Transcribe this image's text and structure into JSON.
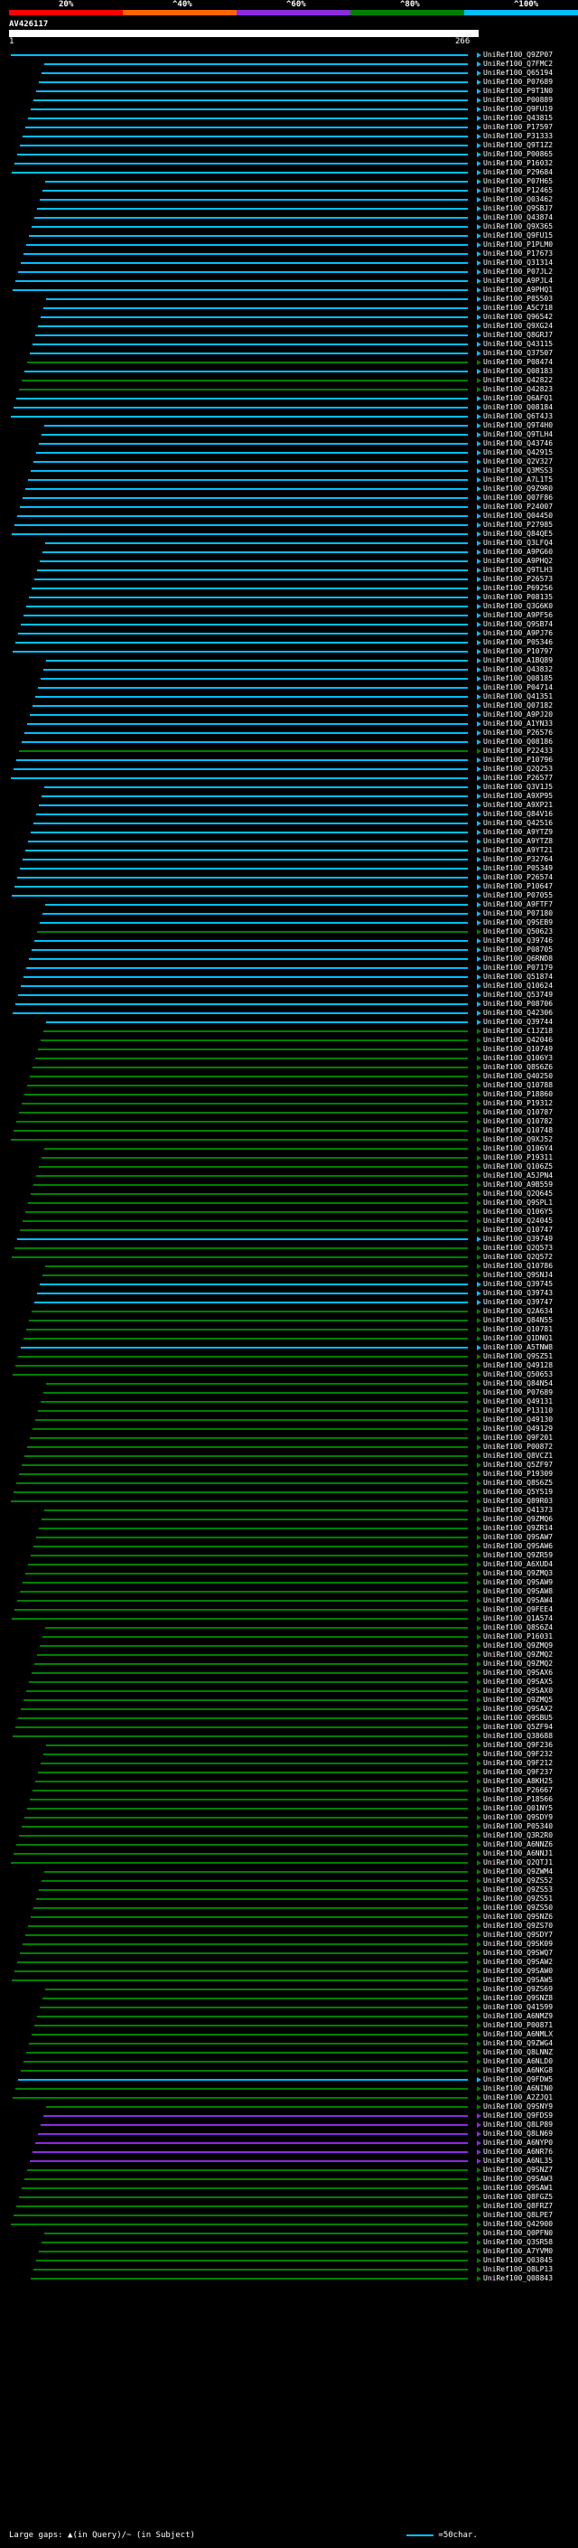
{
  "scale": {
    "labels": [
      "20%",
      "^40%",
      "^60%",
      "^80%",
      "^100%"
    ],
    "colors": [
      "#ff0000",
      "#ff6600",
      "#8a2be2",
      "#008000",
      "#00bfff"
    ]
  },
  "query": {
    "id": "AV426117",
    "start": "1",
    "end": "266"
  },
  "hits": [
    {
      "id": "UniRef100_Q9ZP07",
      "color": "#00bfff"
    },
    {
      "id": "UniRef100_Q7FMC2",
      "color": "#00bfff"
    },
    {
      "id": "UniRef100_Q65194",
      "color": "#00bfff"
    },
    {
      "id": "UniRef100_P07689",
      "color": "#00bfff"
    },
    {
      "id": "UniRef100_P9T1N0",
      "color": "#00bfff"
    },
    {
      "id": "UniRef100_P00889",
      "color": "#00bfff"
    },
    {
      "id": "UniRef100_Q9FU19",
      "color": "#00bfff"
    },
    {
      "id": "UniRef100_Q43815",
      "color": "#00bfff"
    },
    {
      "id": "UniRef100_P17597",
      "color": "#00bfff"
    },
    {
      "id": "UniRef100_P31333",
      "color": "#00bfff"
    },
    {
      "id": "UniRef100_Q9T1Z2",
      "color": "#00bfff"
    },
    {
      "id": "UniRef100_P00865",
      "color": "#00bfff"
    },
    {
      "id": "UniRef100_P16032",
      "color": "#00bfff"
    },
    {
      "id": "UniRef100_P29684",
      "color": "#00bfff"
    },
    {
      "id": "UniRef100_P07H65",
      "color": "#00bfff"
    },
    {
      "id": "UniRef100_P12465",
      "color": "#00bfff"
    },
    {
      "id": "UniRef100_Q03462",
      "color": "#00bfff"
    },
    {
      "id": "UniRef100_Q9SBJ7",
      "color": "#00bfff"
    },
    {
      "id": "UniRef100_Q43874",
      "color": "#00bfff"
    },
    {
      "id": "UniRef100_Q9X365",
      "color": "#00bfff"
    },
    {
      "id": "UniRef100_Q9FU15",
      "color": "#00bfff"
    },
    {
      "id": "UniRef100_P1PLM0",
      "color": "#00bfff"
    },
    {
      "id": "UniRef100_P17673",
      "color": "#00bfff"
    },
    {
      "id": "UniRef100_Q31314",
      "color": "#00bfff"
    },
    {
      "id": "UniRef100_P07JL2",
      "color": "#00bfff"
    },
    {
      "id": "UniRef100_A9PJL4",
      "color": "#00bfff"
    },
    {
      "id": "UniRef100_A9PHQ1",
      "color": "#00bfff"
    },
    {
      "id": "UniRef100_P85503",
      "color": "#00bfff"
    },
    {
      "id": "UniRef100_A5C718",
      "color": "#00bfff"
    },
    {
      "id": "UniRef100_Q96542",
      "color": "#00bfff"
    },
    {
      "id": "UniRef100_Q9XG24",
      "color": "#00bfff"
    },
    {
      "id": "UniRef100_Q8GRJ7",
      "color": "#00bfff"
    },
    {
      "id": "UniRef100_Q43115",
      "color": "#00bfff"
    },
    {
      "id": "UniRef100_Q37507",
      "color": "#00bfff"
    },
    {
      "id": "UniRef100_P08474",
      "color": "#008000"
    },
    {
      "id": "UniRef100_Q08183",
      "color": "#00bfff"
    },
    {
      "id": "UniRef100_Q42822",
      "color": "#008000"
    },
    {
      "id": "UniRef100_Q42823",
      "color": "#008000"
    },
    {
      "id": "UniRef100_Q6AFQ1",
      "color": "#00bfff"
    },
    {
      "id": "UniRef100_Q08184",
      "color": "#00bfff"
    },
    {
      "id": "UniRef100_Q6T4J3",
      "color": "#00bfff"
    },
    {
      "id": "UniRef100_Q9T4H0",
      "color": "#00bfff"
    },
    {
      "id": "UniRef100_Q9TLH4",
      "color": "#00bfff"
    },
    {
      "id": "UniRef100_Q43746",
      "color": "#00bfff"
    },
    {
      "id": "UniRef100_Q42915",
      "color": "#00bfff"
    },
    {
      "id": "UniRef100_Q2V327",
      "color": "#00bfff"
    },
    {
      "id": "UniRef100_Q3MSS3",
      "color": "#00bfff"
    },
    {
      "id": "UniRef100_A7L1T5",
      "color": "#00bfff"
    },
    {
      "id": "UniRef100_Q9Z9R0",
      "color": "#00bfff"
    },
    {
      "id": "UniRef100_Q07F86",
      "color": "#00bfff"
    },
    {
      "id": "UniRef100_P24007",
      "color": "#00bfff"
    },
    {
      "id": "UniRef100_Q04450",
      "color": "#00bfff"
    },
    {
      "id": "UniRef100_P27985",
      "color": "#00bfff"
    },
    {
      "id": "UniRef100_Q84QE5",
      "color": "#00bfff"
    },
    {
      "id": "UniRef100_Q3LFQ4",
      "color": "#00bfff"
    },
    {
      "id": "UniRef100_A9PG60",
      "color": "#00bfff"
    },
    {
      "id": "UniRef100_A9PHQ2",
      "color": "#00bfff"
    },
    {
      "id": "UniRef100_Q9TLH3",
      "color": "#00bfff"
    },
    {
      "id": "UniRef100_P26573",
      "color": "#00bfff"
    },
    {
      "id": "UniRef100_P69256",
      "color": "#00bfff"
    },
    {
      "id": "UniRef100_P08135",
      "color": "#00bfff"
    },
    {
      "id": "UniRef100_Q3G6K0",
      "color": "#00bfff"
    },
    {
      "id": "UniRef100_A9PF56",
      "color": "#00bfff"
    },
    {
      "id": "UniRef100_Q9SB74",
      "color": "#00bfff"
    },
    {
      "id": "UniRef100_A9PJ76",
      "color": "#00bfff"
    },
    {
      "id": "UniRef100_P05346",
      "color": "#00bfff"
    },
    {
      "id": "UniRef100_P10797",
      "color": "#00bfff"
    },
    {
      "id": "UniRef100_A1BQ89",
      "color": "#00bfff"
    },
    {
      "id": "UniRef100_Q43832",
      "color": "#00bfff"
    },
    {
      "id": "UniRef100_Q08185",
      "color": "#00bfff"
    },
    {
      "id": "UniRef100_P04714",
      "color": "#00bfff"
    },
    {
      "id": "UniRef100_Q41351",
      "color": "#00bfff"
    },
    {
      "id": "UniRef100_Q07182",
      "color": "#00bfff"
    },
    {
      "id": "UniRef100_A9PJ20",
      "color": "#00bfff"
    },
    {
      "id": "UniRef100_A1YN33",
      "color": "#00bfff"
    },
    {
      "id": "UniRef100_P26576",
      "color": "#00bfff"
    },
    {
      "id": "UniRef100_Q08186",
      "color": "#00bfff"
    },
    {
      "id": "UniRef100_P22433",
      "color": "#008000"
    },
    {
      "id": "UniRef100_P10796",
      "color": "#00bfff"
    },
    {
      "id": "UniRef100_Q2Q253",
      "color": "#00bfff"
    },
    {
      "id": "UniRef100_P26577",
      "color": "#00bfff"
    },
    {
      "id": "UniRef100_Q3V1J5",
      "color": "#00bfff"
    },
    {
      "id": "UniRef100_A9XP95",
      "color": "#00bfff"
    },
    {
      "id": "UniRef100_A9XP21",
      "color": "#00bfff"
    },
    {
      "id": "UniRef100_Q84V16",
      "color": "#00bfff"
    },
    {
      "id": "UniRef100_Q42516",
      "color": "#00bfff"
    },
    {
      "id": "UniRef100_A9YTZ9",
      "color": "#00bfff"
    },
    {
      "id": "UniRef100_A9YTZ8",
      "color": "#00bfff"
    },
    {
      "id": "UniRef100_A9YT21",
      "color": "#00bfff"
    },
    {
      "id": "UniRef100_P32764",
      "color": "#00bfff"
    },
    {
      "id": "UniRef100_P05349",
      "color": "#00bfff"
    },
    {
      "id": "UniRef100_P26574",
      "color": "#00bfff"
    },
    {
      "id": "UniRef100_P10647",
      "color": "#00bfff"
    },
    {
      "id": "UniRef100_P07055",
      "color": "#00bfff"
    },
    {
      "id": "UniRef100_A9FTF7",
      "color": "#00bfff"
    },
    {
      "id": "UniRef100_P07180",
      "color": "#00bfff"
    },
    {
      "id": "UniRef100_Q9SEB9",
      "color": "#00bfff"
    },
    {
      "id": "UniRef100_Q50623",
      "color": "#008000"
    },
    {
      "id": "UniRef100_Q39746",
      "color": "#00bfff"
    },
    {
      "id": "UniRef100_P08705",
      "color": "#00bfff"
    },
    {
      "id": "UniRef100_Q6RND8",
      "color": "#00bfff"
    },
    {
      "id": "UniRef100_P07179",
      "color": "#00bfff"
    },
    {
      "id": "UniRef100_Q51874",
      "color": "#00bfff"
    },
    {
      "id": "UniRef100_Q10624",
      "color": "#00bfff"
    },
    {
      "id": "UniRef100_Q53749",
      "color": "#00bfff"
    },
    {
      "id": "UniRef100_P08706",
      "color": "#00bfff"
    },
    {
      "id": "UniRef100_Q42306",
      "color": "#00bfff"
    },
    {
      "id": "UniRef100_Q39744",
      "color": "#00bfff"
    },
    {
      "id": "UniRef100_C1JZ18",
      "color": "#008000"
    },
    {
      "id": "UniRef100_Q42046",
      "color": "#008000"
    },
    {
      "id": "UniRef100_Q10749",
      "color": "#008000"
    },
    {
      "id": "UniRef100_Q106Y3",
      "color": "#008000"
    },
    {
      "id": "UniRef100_Q8S6Z6",
      "color": "#008000"
    },
    {
      "id": "UniRef100_Q40250",
      "color": "#008000"
    },
    {
      "id": "UniRef100_Q10788",
      "color": "#008000"
    },
    {
      "id": "UniRef100_P18860",
      "color": "#008000"
    },
    {
      "id": "UniRef100_P19312",
      "color": "#008000"
    },
    {
      "id": "UniRef100_Q10787",
      "color": "#008000"
    },
    {
      "id": "UniRef100_Q10782",
      "color": "#008000"
    },
    {
      "id": "UniRef100_Q10748",
      "color": "#008000"
    },
    {
      "id": "UniRef100_Q9XJ52",
      "color": "#008000"
    },
    {
      "id": "UniRef100_Q106Y4",
      "color": "#008000"
    },
    {
      "id": "UniRef100_P19311",
      "color": "#008000"
    },
    {
      "id": "UniRef100_Q106Z5",
      "color": "#008000"
    },
    {
      "id": "UniRef100_A5JPN4",
      "color": "#008000"
    },
    {
      "id": "UniRef100_A9B559",
      "color": "#008000"
    },
    {
      "id": "UniRef100_Q2Q645",
      "color": "#008000"
    },
    {
      "id": "UniRef100_Q9SPL1",
      "color": "#008000"
    },
    {
      "id": "UniRef100_Q106Y5",
      "color": "#008000"
    },
    {
      "id": "UniRef100_Q24045",
      "color": "#008000"
    },
    {
      "id": "UniRef100_Q10747",
      "color": "#008000"
    },
    {
      "id": "UniRef100_Q39749",
      "color": "#00bfff"
    },
    {
      "id": "UniRef100_Q2Q573",
      "color": "#008000"
    },
    {
      "id": "UniRef100_Q2Q572",
      "color": "#008000"
    },
    {
      "id": "UniRef100_Q10786",
      "color": "#008000"
    },
    {
      "id": "UniRef100_Q9SNJ4",
      "color": "#008000"
    },
    {
      "id": "UniRef100_Q39745",
      "color": "#00bfff"
    },
    {
      "id": "UniRef100_Q39743",
      "color": "#00bfff"
    },
    {
      "id": "UniRef100_Q39747",
      "color": "#00bfff"
    },
    {
      "id": "UniRef100_Q2A634",
      "color": "#008000"
    },
    {
      "id": "UniRef100_Q84N55",
      "color": "#008000"
    },
    {
      "id": "UniRef100_Q10781",
      "color": "#008000"
    },
    {
      "id": "UniRef100_Q1DNQ1",
      "color": "#008000"
    },
    {
      "id": "UniRef100_A5TNW8",
      "color": "#00bfff"
    },
    {
      "id": "UniRef100_Q9SZ51",
      "color": "#008000"
    },
    {
      "id": "UniRef100_Q49128",
      "color": "#008000"
    },
    {
      "id": "UniRef100_Q50653",
      "color": "#008000"
    },
    {
      "id": "UniRef100_Q84N54",
      "color": "#008000"
    },
    {
      "id": "UniRef100_P07689",
      "color": "#008000"
    },
    {
      "id": "UniRef100_Q49131",
      "color": "#008000"
    },
    {
      "id": "UniRef100_P13110",
      "color": "#008000"
    },
    {
      "id": "UniRef100_Q49130",
      "color": "#008000"
    },
    {
      "id": "UniRef100_Q49129",
      "color": "#008000"
    },
    {
      "id": "UniRef100_Q9F201",
      "color": "#008000"
    },
    {
      "id": "UniRef100_P00872",
      "color": "#008000"
    },
    {
      "id": "UniRef100_Q8VCZ1",
      "color": "#008000"
    },
    {
      "id": "UniRef100_Q5ZF97",
      "color": "#008000"
    },
    {
      "id": "UniRef100_P19309",
      "color": "#008000"
    },
    {
      "id": "UniRef100_Q8S6Z5",
      "color": "#008000"
    },
    {
      "id": "UniRef100_Q5Y519",
      "color": "#008000"
    },
    {
      "id": "UniRef100_Q89R03",
      "color": "#008000"
    },
    {
      "id": "UniRef100_Q41373",
      "color": "#008000"
    },
    {
      "id": "UniRef100_Q9ZMQ6",
      "color": "#008000"
    },
    {
      "id": "UniRef100_Q9ZR14",
      "color": "#008000"
    },
    {
      "id": "UniRef100_Q9SAW7",
      "color": "#008000"
    },
    {
      "id": "UniRef100_Q9SAW6",
      "color": "#008000"
    },
    {
      "id": "UniRef100_Q9ZR59",
      "color": "#008000"
    },
    {
      "id": "UniRef100_A6XUD4",
      "color": "#008000"
    },
    {
      "id": "UniRef100_Q9ZMQ3",
      "color": "#008000"
    },
    {
      "id": "UniRef100_Q9SAW9",
      "color": "#008000"
    },
    {
      "id": "UniRef100_Q9SAW8",
      "color": "#008000"
    },
    {
      "id": "UniRef100_Q9SAW4",
      "color": "#008000"
    },
    {
      "id": "UniRef100_Q9FEE4",
      "color": "#008000"
    },
    {
      "id": "UniRef100_Q1A574",
      "color": "#008000"
    },
    {
      "id": "UniRef100_Q8S6Z4",
      "color": "#008000"
    },
    {
      "id": "UniRef100_P16031",
      "color": "#008000"
    },
    {
      "id": "UniRef100_Q9ZMQ9",
      "color": "#008000"
    },
    {
      "id": "UniRef100_Q9ZMQ2",
      "color": "#008000"
    },
    {
      "id": "UniRef100_Q9ZMQ2",
      "color": "#008000"
    },
    {
      "id": "UniRef100_Q9SAX6",
      "color": "#008000"
    },
    {
      "id": "UniRef100_Q9SAX5",
      "color": "#008000"
    },
    {
      "id": "UniRef100_Q9SAX0",
      "color": "#008000"
    },
    {
      "id": "UniRef100_Q9ZMQ5",
      "color": "#008000"
    },
    {
      "id": "UniRef100_Q9SAX2",
      "color": "#008000"
    },
    {
      "id": "UniRef100_Q9SBU5",
      "color": "#008000"
    },
    {
      "id": "UniRef100_Q5ZF94",
      "color": "#008000"
    },
    {
      "id": "UniRef100_Q38688",
      "color": "#008000"
    },
    {
      "id": "UniRef100_Q9F236",
      "color": "#008000"
    },
    {
      "id": "UniRef100_Q9F232",
      "color": "#008000"
    },
    {
      "id": "UniRef100_Q9F212",
      "color": "#008000"
    },
    {
      "id": "UniRef100_Q9F237",
      "color": "#008000"
    },
    {
      "id": "UniRef100_A8KH25",
      "color": "#008000"
    },
    {
      "id": "UniRef100_P26667",
      "color": "#008000"
    },
    {
      "id": "UniRef100_P18566",
      "color": "#008000"
    },
    {
      "id": "UniRef100_Q01NY5",
      "color": "#008000"
    },
    {
      "id": "UniRef100_Q9SDY9",
      "color": "#008000"
    },
    {
      "id": "UniRef100_P05340",
      "color": "#008000"
    },
    {
      "id": "UniRef100_Q3R2R0",
      "color": "#008000"
    },
    {
      "id": "UniRef100_A6NNZ6",
      "color": "#008000"
    },
    {
      "id": "UniRef100_A6NNJ1",
      "color": "#008000"
    },
    {
      "id": "UniRef100_Q2QTJ1",
      "color": "#008000"
    },
    {
      "id": "UniRef100_Q9ZWM4",
      "color": "#008000"
    },
    {
      "id": "UniRef100_Q9ZS52",
      "color": "#008000"
    },
    {
      "id": "UniRef100_Q9ZS53",
      "color": "#008000"
    },
    {
      "id": "UniRef100_Q9ZS51",
      "color": "#008000"
    },
    {
      "id": "UniRef100_Q9ZS50",
      "color": "#008000"
    },
    {
      "id": "UniRef100_Q9SNZ6",
      "color": "#008000"
    },
    {
      "id": "UniRef100_Q9ZS70",
      "color": "#008000"
    },
    {
      "id": "UniRef100_Q9SDY7",
      "color": "#008000"
    },
    {
      "id": "UniRef100_Q9SK09",
      "color": "#008000"
    },
    {
      "id": "UniRef100_Q9SWQ7",
      "color": "#008000"
    },
    {
      "id": "UniRef100_Q9SAW2",
      "color": "#008000"
    },
    {
      "id": "UniRef100_Q9SAW0",
      "color": "#008000"
    },
    {
      "id": "UniRef100_Q9SAW5",
      "color": "#008000"
    },
    {
      "id": "UniRef100_Q9ZS69",
      "color": "#008000"
    },
    {
      "id": "UniRef100_Q9SNZ8",
      "color": "#008000"
    },
    {
      "id": "UniRef100_Q41599",
      "color": "#008000"
    },
    {
      "id": "UniRef100_A6NMZ9",
      "color": "#008000"
    },
    {
      "id": "UniRef100_P00871",
      "color": "#008000"
    },
    {
      "id": "UniRef100_A6NMLX",
      "color": "#008000"
    },
    {
      "id": "UniRef100_Q9ZWG4",
      "color": "#008000"
    },
    {
      "id": "UniRef100_Q8LNNZ",
      "color": "#008000"
    },
    {
      "id": "UniRef100_A6NLD0",
      "color": "#008000"
    },
    {
      "id": "UniRef100_A6NKG8",
      "color": "#008000"
    },
    {
      "id": "UniRef100_Q9FDW5",
      "color": "#00bfff"
    },
    {
      "id": "UniRef100_A6NIN0",
      "color": "#008000"
    },
    {
      "id": "UniRef100_A2ZJQ1",
      "color": "#008000"
    },
    {
      "id": "UniRef100_Q9SNY9",
      "color": "#008000"
    },
    {
      "id": "UniRef100_Q9FDS9",
      "color": "#8a2be2"
    },
    {
      "id": "UniRef100_Q8LP89",
      "color": "#8a2be2"
    },
    {
      "id": "UniRef100_Q8LN69",
      "color": "#8a2be2"
    },
    {
      "id": "UniRef100_A6NYP0",
      "color": "#8a2be2"
    },
    {
      "id": "UniRef100_A6NR76",
      "color": "#8a2be2"
    },
    {
      "id": "UniRef100_A6NL35",
      "color": "#8a2be2"
    },
    {
      "id": "UniRef100_Q9SNZ7",
      "color": "#008000"
    },
    {
      "id": "UniRef100_Q9SAW3",
      "color": "#008000"
    },
    {
      "id": "UniRef100_Q9SAW1",
      "color": "#008000"
    },
    {
      "id": "UniRef100_Q8FGZ5",
      "color": "#008000"
    },
    {
      "id": "UniRef100_Q8FRZ7",
      "color": "#008000"
    },
    {
      "id": "UniRef100_Q8LPE7",
      "color": "#008000"
    },
    {
      "id": "UniRef100_Q42900",
      "color": "#008000"
    },
    {
      "id": "UniRef100_Q0PFN0",
      "color": "#008000"
    },
    {
      "id": "UniRef100_Q3SR58",
      "color": "#008000"
    },
    {
      "id": "UniRef100_A7YVM0",
      "color": "#008000"
    },
    {
      "id": "UniRef100_Q03845",
      "color": "#008000"
    },
    {
      "id": "UniRef100_Q8LP13",
      "color": "#008000"
    },
    {
      "id": "UniRef100_Q08843",
      "color": "#008000"
    }
  ],
  "footer": {
    "text": "Large gaps: ▲(in Query)/~ (in Subject)",
    "legend": "=50char."
  }
}
